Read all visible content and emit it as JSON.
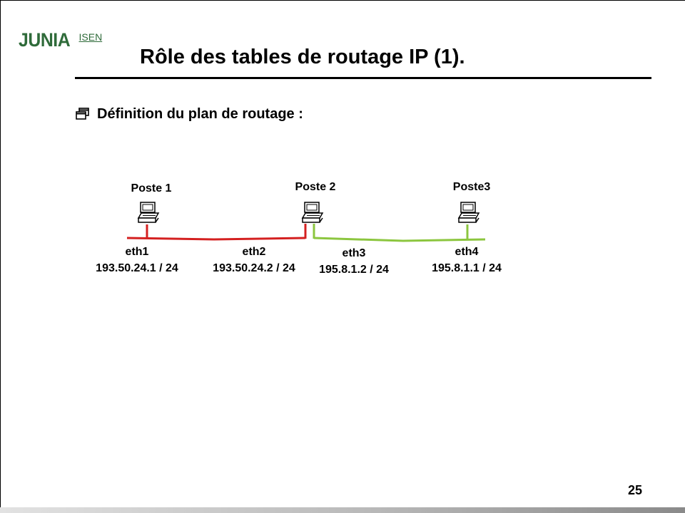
{
  "logo": {
    "main": "JUNIA",
    "sub": "ISEN"
  },
  "slide": {
    "title": "Rôle des tables de routage IP (1).",
    "bullet": "Définition du plan de routage :",
    "bullet_icon": "window-bullet-icon",
    "page_number": "25"
  },
  "colors": {
    "logo_green": "#2f6b3a",
    "link_red": "#d42020",
    "link_green": "#8cc63f"
  },
  "hosts": [
    {
      "name": "Poste 1",
      "icon": "computer-icon"
    },
    {
      "name": "Poste 2",
      "icon": "computer-icon"
    },
    {
      "name": "Poste3",
      "icon": "computer-icon"
    }
  ],
  "interfaces": [
    {
      "name": "eth1",
      "address": "193.50.24.1 / 24"
    },
    {
      "name": "eth2",
      "address": "193.50.24.2 / 24"
    },
    {
      "name": "eth3",
      "address": "195.8.1.2 / 24"
    },
    {
      "name": "eth4",
      "address": "195.8.1.1 / 24"
    }
  ]
}
